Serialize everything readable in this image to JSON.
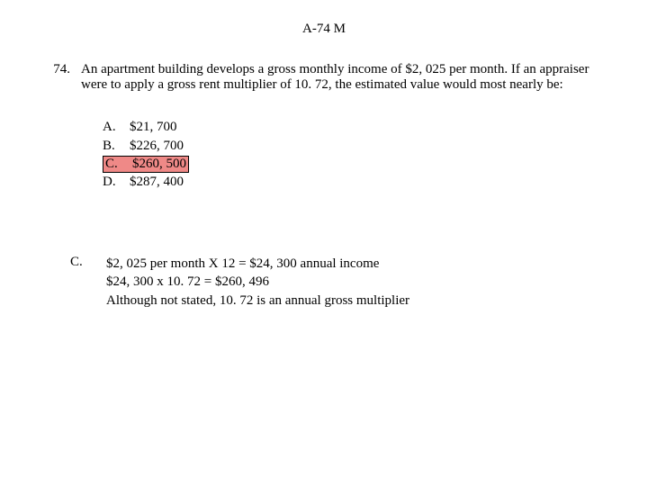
{
  "header": "A-74 M",
  "question": {
    "number": "74.",
    "text": "An apartment building develops a gross monthly income of $2, 025 per month. If an appraiser were to apply a gross rent multiplier of 10. 72, the estimated value would most nearly be:"
  },
  "answers": {
    "a": {
      "label": "A.",
      "value": "$21, 700"
    },
    "b": {
      "label": "B.",
      "value": "$226, 700"
    },
    "c": {
      "label": "C.",
      "value": "$260, 500"
    },
    "d": {
      "label": "D.",
      "value": "$287, 400"
    }
  },
  "highlighted_answer": "c",
  "explanation": {
    "label": "C.",
    "line1": "$2, 025 per month X 12 = $24, 300 annual income",
    "line2": "$24, 300 x 10. 72 = $260, 496",
    "line3": "Although not stated, 10. 72 is an annual gross multiplier"
  },
  "colors": {
    "highlight_bg": "#ef8987",
    "highlight_border": "#000000",
    "background": "#ffffff",
    "text": "#000000"
  },
  "typography": {
    "font_family": "Times New Roman",
    "font_size_pt": 12
  }
}
